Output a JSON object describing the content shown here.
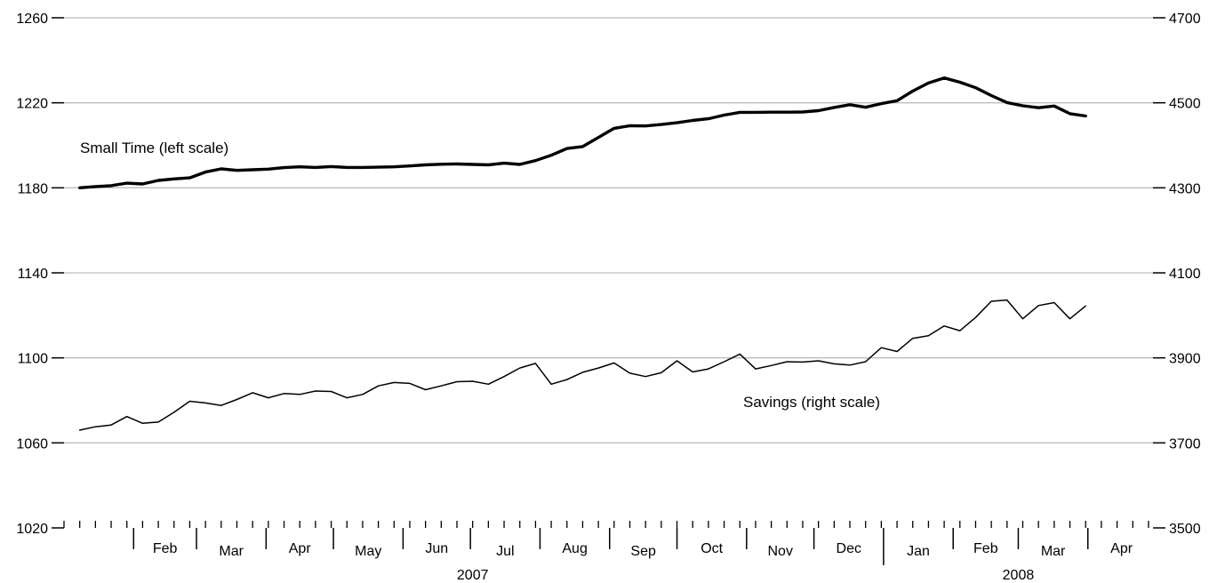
{
  "chart_data": {
    "type": "line",
    "grid": true,
    "y_left": {
      "ticks": [
        1020,
        1060,
        1100,
        1140,
        1180,
        1220,
        1260
      ],
      "range": [
        1020,
        1260
      ]
    },
    "y_right": {
      "ticks": [
        3500,
        3700,
        3900,
        4100,
        4300,
        4500,
        4700
      ],
      "range": [
        3500,
        4700
      ]
    },
    "month_labels": [
      "Feb",
      "Mar",
      "Apr",
      "May",
      "Jun",
      "Jul",
      "Aug",
      "Sep",
      "Oct",
      "Nov",
      "Dec",
      "Jan",
      "Feb",
      "Mar",
      "Apr"
    ],
    "year_labels": [
      "2007",
      "2008"
    ],
    "x_range": [
      "2007-01-01",
      "2008-04-30"
    ],
    "series": [
      {
        "name": "Small Time (left scale)",
        "axis": "left",
        "dates": [
          "2007-01-08",
          "2007-01-15",
          "2007-01-22",
          "2007-01-29",
          "2007-02-05",
          "2007-02-12",
          "2007-02-19",
          "2007-02-26",
          "2007-03-05",
          "2007-03-12",
          "2007-03-19",
          "2007-03-26",
          "2007-04-02",
          "2007-04-09",
          "2007-04-16",
          "2007-04-23",
          "2007-04-30",
          "2007-05-07",
          "2007-05-14",
          "2007-05-21",
          "2007-05-28",
          "2007-06-04",
          "2007-06-11",
          "2007-06-18",
          "2007-06-25",
          "2007-07-02",
          "2007-07-09",
          "2007-07-16",
          "2007-07-23",
          "2007-07-30",
          "2007-08-06",
          "2007-08-13",
          "2007-08-20",
          "2007-08-27",
          "2007-09-03",
          "2007-09-10",
          "2007-09-17",
          "2007-09-24",
          "2007-10-01",
          "2007-10-08",
          "2007-10-15",
          "2007-10-22",
          "2007-10-29",
          "2007-11-05",
          "2007-11-12",
          "2007-11-19",
          "2007-11-26",
          "2007-12-03",
          "2007-12-10",
          "2007-12-17",
          "2007-12-24",
          "2007-12-31",
          "2008-01-07",
          "2008-01-14",
          "2008-01-21",
          "2008-01-28",
          "2008-02-04",
          "2008-02-11",
          "2008-02-18",
          "2008-02-25",
          "2008-03-03",
          "2008-03-10",
          "2008-03-17",
          "2008-03-24",
          "2008-03-31"
        ],
        "values": [
          1180.0,
          1180.6,
          1181.0,
          1182.2,
          1181.8,
          1183.5,
          1184.2,
          1184.7,
          1187.4,
          1188.9,
          1188.2,
          1188.5,
          1188.8,
          1189.5,
          1189.9,
          1189.6,
          1190.0,
          1189.6,
          1189.6,
          1189.7,
          1189.9,
          1190.3,
          1190.8,
          1191.1,
          1191.2,
          1191.0,
          1190.8,
          1191.6,
          1191.0,
          1192.8,
          1195.3,
          1198.5,
          1199.4,
          1203.7,
          1208.0,
          1209.2,
          1209.1,
          1209.8,
          1210.6,
          1211.7,
          1212.5,
          1214.2,
          1215.5,
          1215.5,
          1215.6,
          1215.6,
          1215.7,
          1216.3,
          1217.8,
          1219.1,
          1217.9,
          1219.6,
          1221.0,
          1225.5,
          1229.3,
          1231.7,
          1229.7,
          1227.1,
          1223.4,
          1220.1,
          1218.6,
          1217.7,
          1218.5,
          1214.9,
          1213.8
        ]
      },
      {
        "name": "Savings (right scale)",
        "axis": "right",
        "dates": [
          "2007-01-08",
          "2007-01-15",
          "2007-01-22",
          "2007-01-29",
          "2007-02-05",
          "2007-02-12",
          "2007-02-19",
          "2007-02-26",
          "2007-03-05",
          "2007-03-12",
          "2007-03-19",
          "2007-03-26",
          "2007-04-02",
          "2007-04-09",
          "2007-04-16",
          "2007-04-23",
          "2007-04-30",
          "2007-05-07",
          "2007-05-14",
          "2007-05-21",
          "2007-05-28",
          "2007-06-04",
          "2007-06-11",
          "2007-06-18",
          "2007-06-25",
          "2007-07-02",
          "2007-07-09",
          "2007-07-16",
          "2007-07-23",
          "2007-07-30",
          "2007-08-06",
          "2007-08-13",
          "2007-08-20",
          "2007-08-27",
          "2007-09-03",
          "2007-09-10",
          "2007-09-17",
          "2007-09-24",
          "2007-10-01",
          "2007-10-08",
          "2007-10-15",
          "2007-10-22",
          "2007-10-29",
          "2007-11-05",
          "2007-11-12",
          "2007-11-19",
          "2007-11-26",
          "2007-12-03",
          "2007-12-10",
          "2007-12-17",
          "2007-12-24",
          "2007-12-31",
          "2008-01-07",
          "2008-01-14",
          "2008-01-21",
          "2008-01-28",
          "2008-02-04",
          "2008-02-11",
          "2008-02-18",
          "2008-02-25",
          "2008-03-03",
          "2008-03-10",
          "2008-03-17",
          "2008-03-24",
          "2008-03-31"
        ],
        "values": [
          3730,
          3738,
          3742,
          3762,
          3746,
          3749,
          3772,
          3798,
          3794,
          3788,
          3802,
          3818,
          3806,
          3816,
          3814,
          3822,
          3821,
          3806,
          3814,
          3834,
          3842,
          3840,
          3825,
          3834,
          3844,
          3845,
          3838,
          3856,
          3876,
          3887,
          3838,
          3849,
          3866,
          3876,
          3888,
          3864,
          3856,
          3865,
          3893,
          3867,
          3874,
          3891,
          3909,
          3874,
          3882,
          3891,
          3890,
          3893,
          3886,
          3883,
          3891,
          3924,
          3915,
          3946,
          3952,
          3975,
          3964,
          3995,
          4033,
          4036,
          3992,
          4023,
          4030,
          3992,
          4022
        ]
      }
    ]
  }
}
